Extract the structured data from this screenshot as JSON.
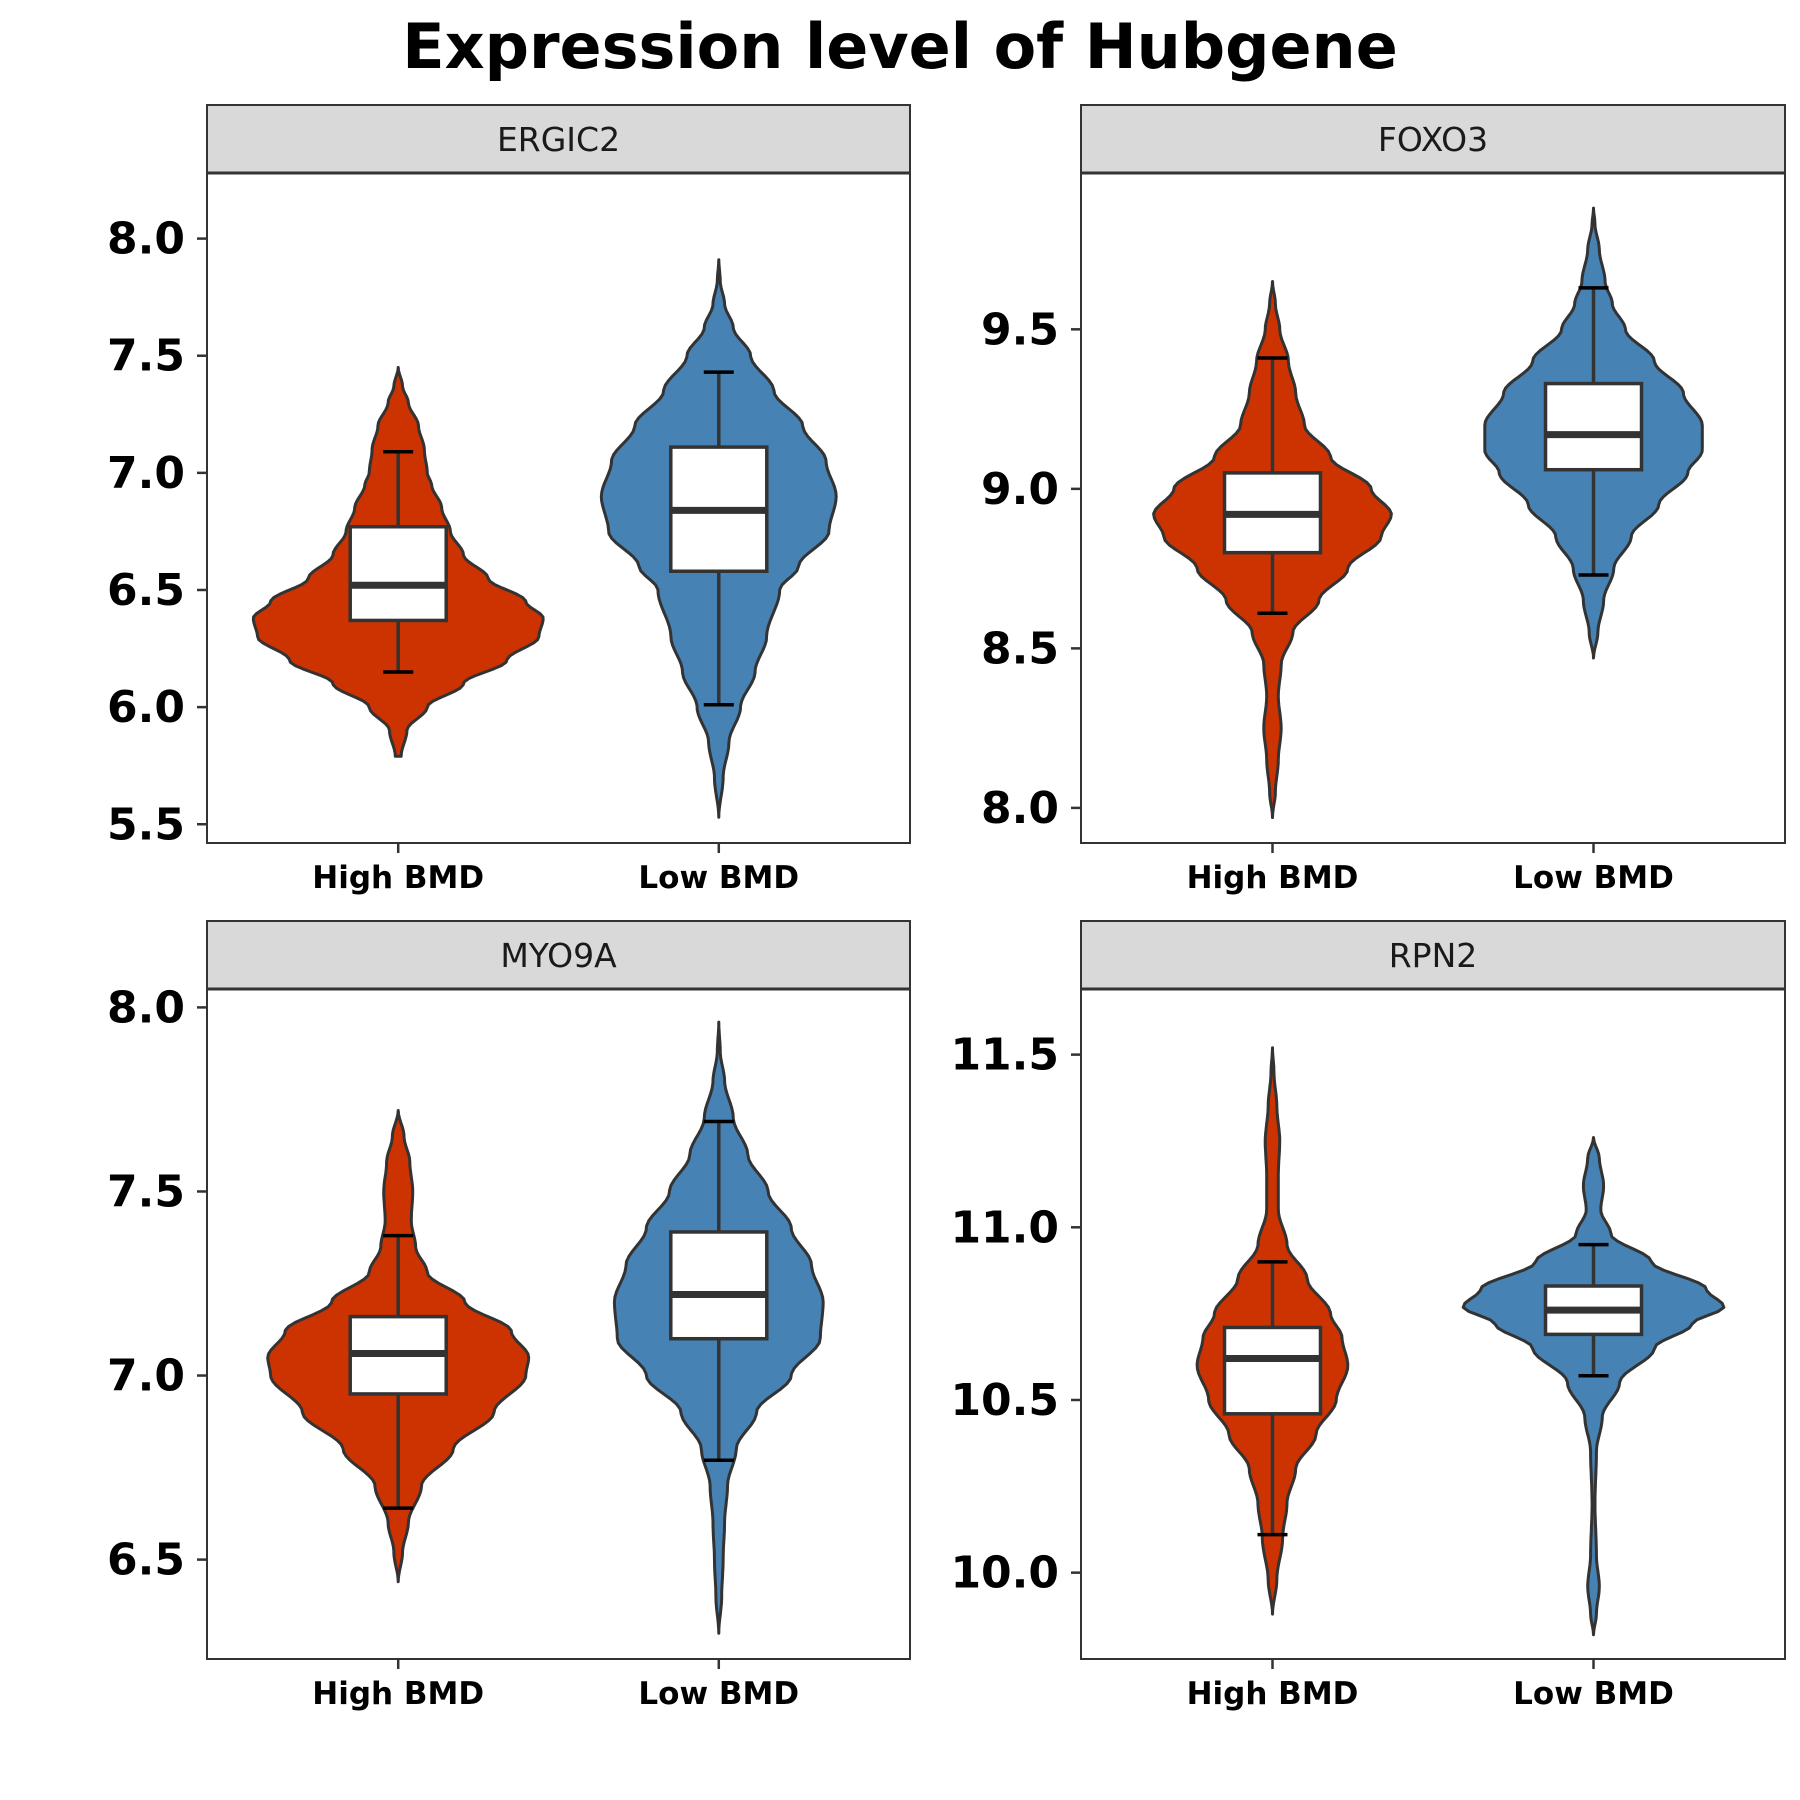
{
  "title": "Expression level of Hubgene",
  "colors": {
    "High BMD": "#CC3300",
    "Low BMD": "#4682B4",
    "strip_fill": "#D9D9D9",
    "outline": "#333333",
    "box_fill": "#FFFFFF"
  },
  "chart_data": [
    {
      "type": "violin",
      "panel": "ERGIC2",
      "categories": [
        "High BMD",
        "Low BMD"
      ],
      "ylim": [
        5.42,
        8.28
      ],
      "yticks": [
        5.5,
        6.0,
        6.5,
        7.0,
        7.5,
        8.0
      ],
      "ytick_labels": [
        "5.5",
        "6.0",
        "6.5",
        "7.0",
        "7.5",
        "8.0"
      ],
      "grid": false,
      "series": [
        {
          "category": "High BMD",
          "stats": {
            "whisker_low": 6.15,
            "q1": 6.37,
            "median": 6.52,
            "q3": 6.77,
            "whisker_high": 7.09
          },
          "violin_range": [
            5.79,
            7.45
          ],
          "density_profile": [
            [
              5.79,
              0.02
            ],
            [
              5.9,
              0.06
            ],
            [
              6.0,
              0.2
            ],
            [
              6.1,
              0.45
            ],
            [
              6.2,
              0.75
            ],
            [
              6.3,
              0.97
            ],
            [
              6.38,
              1.0
            ],
            [
              6.45,
              0.88
            ],
            [
              6.55,
              0.62
            ],
            [
              6.65,
              0.45
            ],
            [
              6.75,
              0.36
            ],
            [
              6.85,
              0.3
            ],
            [
              6.95,
              0.23
            ],
            [
              7.0,
              0.2
            ],
            [
              7.1,
              0.18
            ],
            [
              7.2,
              0.14
            ],
            [
              7.3,
              0.07
            ],
            [
              7.37,
              0.03
            ],
            [
              7.45,
              0.0
            ]
          ]
        },
        {
          "category": "Low BMD",
          "stats": {
            "whisker_low": 6.01,
            "q1": 6.58,
            "median": 6.84,
            "q3": 7.11,
            "whisker_high": 7.43
          },
          "violin_range": [
            5.53,
            7.91
          ],
          "density_profile": [
            [
              5.53,
              0.0
            ],
            [
              5.7,
              0.03
            ],
            [
              5.85,
              0.07
            ],
            [
              6.0,
              0.15
            ],
            [
              6.15,
              0.25
            ],
            [
              6.3,
              0.33
            ],
            [
              6.5,
              0.42
            ],
            [
              6.6,
              0.55
            ],
            [
              6.75,
              0.76
            ],
            [
              6.9,
              0.81
            ],
            [
              7.05,
              0.74
            ],
            [
              7.2,
              0.58
            ],
            [
              7.35,
              0.38
            ],
            [
              7.5,
              0.22
            ],
            [
              7.62,
              0.1
            ],
            [
              7.72,
              0.04
            ],
            [
              7.82,
              0.01
            ],
            [
              7.91,
              0.0
            ]
          ]
        }
      ]
    },
    {
      "type": "violin",
      "panel": "FOXO3",
      "categories": [
        "High BMD",
        "Low BMD"
      ],
      "ylim": [
        7.89,
        9.99
      ],
      "yticks": [
        8.0,
        8.5,
        9.0,
        9.5
      ],
      "ytick_labels": [
        "8.0",
        "8.5",
        "9.0",
        "9.5"
      ],
      "grid": false,
      "series": [
        {
          "category": "High BMD",
          "stats": {
            "whisker_low": 8.61,
            "q1": 8.8,
            "median": 8.92,
            "q3": 9.05,
            "whisker_high": 9.41
          },
          "violin_range": [
            7.97,
            9.65
          ],
          "density_profile": [
            [
              7.97,
              0.0
            ],
            [
              8.05,
              0.02
            ],
            [
              8.15,
              0.04
            ],
            [
              8.25,
              0.06
            ],
            [
              8.35,
              0.04
            ],
            [
              8.45,
              0.06
            ],
            [
              8.55,
              0.14
            ],
            [
              8.65,
              0.32
            ],
            [
              8.75,
              0.52
            ],
            [
              8.85,
              0.75
            ],
            [
              8.92,
              0.82
            ],
            [
              9.0,
              0.68
            ],
            [
              9.1,
              0.4
            ],
            [
              9.2,
              0.22
            ],
            [
              9.3,
              0.16
            ],
            [
              9.4,
              0.11
            ],
            [
              9.5,
              0.05
            ],
            [
              9.58,
              0.02
            ],
            [
              9.65,
              0.0
            ]
          ]
        },
        {
          "category": "Low BMD",
          "stats": {
            "whisker_low": 8.73,
            "q1": 9.06,
            "median": 9.17,
            "q3": 9.33,
            "whisker_high": 9.63
          },
          "violin_range": [
            8.47,
            9.88
          ],
          "density_profile": [
            [
              8.47,
              0.0
            ],
            [
              8.55,
              0.03
            ],
            [
              8.65,
              0.07
            ],
            [
              8.75,
              0.14
            ],
            [
              8.85,
              0.26
            ],
            [
              8.95,
              0.45
            ],
            [
              9.05,
              0.65
            ],
            [
              9.12,
              0.75
            ],
            [
              9.2,
              0.75
            ],
            [
              9.3,
              0.62
            ],
            [
              9.4,
              0.42
            ],
            [
              9.5,
              0.22
            ],
            [
              9.58,
              0.13
            ],
            [
              9.65,
              0.08
            ],
            [
              9.75,
              0.04
            ],
            [
              9.83,
              0.01
            ],
            [
              9.88,
              0.0
            ]
          ]
        }
      ]
    },
    {
      "type": "violin",
      "panel": "MYO9A",
      "categories": [
        "High BMD",
        "Low BMD"
      ],
      "ylim": [
        6.23,
        8.05
      ],
      "yticks": [
        6.5,
        7.0,
        7.5,
        8.0
      ],
      "ytick_labels": [
        "6.5",
        "7.0",
        "7.5",
        "8.0"
      ],
      "grid": false,
      "series": [
        {
          "category": "High BMD",
          "stats": {
            "whisker_low": 6.64,
            "q1": 6.95,
            "median": 7.06,
            "q3": 7.16,
            "whisker_high": 7.38
          },
          "violin_range": [
            6.44,
            7.72
          ],
          "density_profile": [
            [
              6.44,
              0.0
            ],
            [
              6.52,
              0.03
            ],
            [
              6.6,
              0.07
            ],
            [
              6.7,
              0.16
            ],
            [
              6.8,
              0.38
            ],
            [
              6.9,
              0.66
            ],
            [
              7.0,
              0.88
            ],
            [
              7.05,
              0.9
            ],
            [
              7.12,
              0.78
            ],
            [
              7.2,
              0.46
            ],
            [
              7.28,
              0.2
            ],
            [
              7.35,
              0.12
            ],
            [
              7.42,
              0.09
            ],
            [
              7.5,
              0.1
            ],
            [
              7.58,
              0.08
            ],
            [
              7.65,
              0.04
            ],
            [
              7.72,
              0.0
            ]
          ]
        },
        {
          "category": "Low BMD",
          "stats": {
            "whisker_low": 6.77,
            "q1": 7.1,
            "median": 7.22,
            "q3": 7.39,
            "whisker_high": 7.69
          },
          "violin_range": [
            6.3,
            7.96
          ],
          "density_profile": [
            [
              6.3,
              0.0
            ],
            [
              6.4,
              0.02
            ],
            [
              6.5,
              0.03
            ],
            [
              6.6,
              0.04
            ],
            [
              6.7,
              0.06
            ],
            [
              6.8,
              0.12
            ],
            [
              6.9,
              0.26
            ],
            [
              7.0,
              0.5
            ],
            [
              7.1,
              0.7
            ],
            [
              7.2,
              0.72
            ],
            [
              7.3,
              0.64
            ],
            [
              7.4,
              0.5
            ],
            [
              7.5,
              0.34
            ],
            [
              7.6,
              0.2
            ],
            [
              7.7,
              0.1
            ],
            [
              7.8,
              0.04
            ],
            [
              7.88,
              0.01
            ],
            [
              7.96,
              0.0
            ]
          ]
        }
      ]
    },
    {
      "type": "violin",
      "panel": "RPN2",
      "categories": [
        "High BMD",
        "Low BMD"
      ],
      "ylim": [
        9.75,
        11.69
      ],
      "yticks": [
        10.0,
        10.5,
        11.0,
        11.5
      ],
      "ytick_labels": [
        "10.0",
        "10.5",
        "11.0",
        "11.5"
      ],
      "grid": false,
      "series": [
        {
          "category": "High BMD",
          "stats": {
            "whisker_low": 10.11,
            "q1": 10.46,
            "median": 10.62,
            "q3": 10.71,
            "whisker_high": 10.9
          },
          "violin_range": [
            9.88,
            11.52
          ],
          "density_profile": [
            [
              9.88,
              0.0
            ],
            [
              9.98,
              0.03
            ],
            [
              10.1,
              0.07
            ],
            [
              10.2,
              0.1
            ],
            [
              10.3,
              0.16
            ],
            [
              10.4,
              0.3
            ],
            [
              10.5,
              0.44
            ],
            [
              10.6,
              0.52
            ],
            [
              10.68,
              0.48
            ],
            [
              10.75,
              0.4
            ],
            [
              10.85,
              0.24
            ],
            [
              10.95,
              0.1
            ],
            [
              11.05,
              0.04
            ],
            [
              11.15,
              0.04
            ],
            [
              11.25,
              0.05
            ],
            [
              11.35,
              0.03
            ],
            [
              11.45,
              0.01
            ],
            [
              11.52,
              0.0
            ]
          ]
        },
        {
          "category": "Low BMD",
          "stats": {
            "whisker_low": 10.57,
            "q1": 10.69,
            "median": 10.76,
            "q3": 10.83,
            "whisker_high": 10.95
          },
          "violin_range": [
            9.82,
            11.26
          ],
          "density_profile": [
            [
              9.82,
              0.0
            ],
            [
              9.88,
              0.02
            ],
            [
              9.96,
              0.04
            ],
            [
              10.05,
              0.02
            ],
            [
              10.2,
              0.01
            ],
            [
              10.35,
              0.02
            ],
            [
              10.45,
              0.06
            ],
            [
              10.55,
              0.18
            ],
            [
              10.65,
              0.42
            ],
            [
              10.72,
              0.68
            ],
            [
              10.77,
              0.9
            ],
            [
              10.82,
              0.78
            ],
            [
              10.9,
              0.4
            ],
            [
              10.98,
              0.12
            ],
            [
              11.05,
              0.05
            ],
            [
              11.12,
              0.07
            ],
            [
              11.2,
              0.04
            ],
            [
              11.26,
              0.0
            ]
          ]
        }
      ]
    }
  ]
}
